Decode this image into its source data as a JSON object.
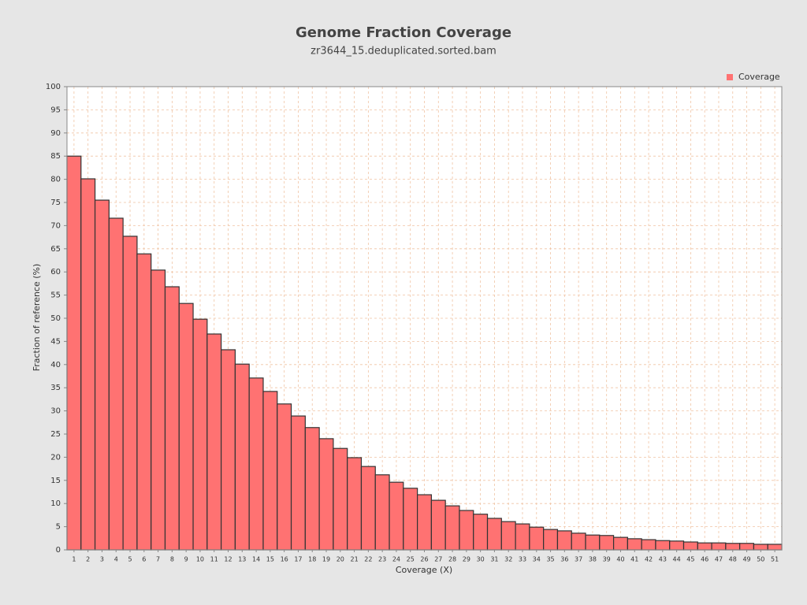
{
  "chart_data": {
    "type": "bar",
    "title": "Genome Fraction Coverage",
    "subtitle": "zr3644_15.deduplicated.sorted.bam",
    "x_label": "Coverage (X)",
    "y_label": "Fraction of reference (%)",
    "categories": [
      "1",
      "2",
      "3",
      "4",
      "5",
      "6",
      "7",
      "8",
      "9",
      "10",
      "11",
      "12",
      "13",
      "14",
      "15",
      "16",
      "17",
      "18",
      "19",
      "20",
      "21",
      "22",
      "23",
      "24",
      "25",
      "26",
      "27",
      "28",
      "29",
      "30",
      "31",
      "32",
      "33",
      "34",
      "35",
      "36",
      "37",
      "38",
      "39",
      "40",
      "41",
      "42",
      "43",
      "44",
      "45",
      "46",
      "47",
      "48",
      "49",
      "50",
      "51"
    ],
    "series": [
      {
        "name": "Coverage",
        "color": "#ff7272",
        "values": [
          85.0,
          80.1,
          75.5,
          71.6,
          67.7,
          63.9,
          60.4,
          56.8,
          53.2,
          49.8,
          46.6,
          43.2,
          40.1,
          37.1,
          34.2,
          31.5,
          28.9,
          26.4,
          24.0,
          21.9,
          19.9,
          18.0,
          16.2,
          14.6,
          13.3,
          11.9,
          10.7,
          9.5,
          8.5,
          7.7,
          6.8,
          6.1,
          5.6,
          4.9,
          4.4,
          4.1,
          3.6,
          3.2,
          3.1,
          2.7,
          2.4,
          2.2,
          2.0,
          1.9,
          1.7,
          1.5,
          1.5,
          1.4,
          1.4,
          1.2,
          1.2
        ]
      }
    ],
    "ylim": [
      0,
      100
    ],
    "yticks": [
      0,
      5,
      10,
      15,
      20,
      25,
      30,
      35,
      40,
      45,
      50,
      55,
      60,
      65,
      70,
      75,
      80,
      85,
      90,
      95,
      100
    ],
    "grid": true,
    "legend": "top-right"
  }
}
